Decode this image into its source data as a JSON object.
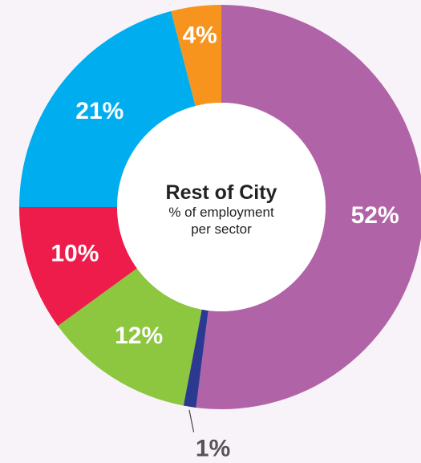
{
  "chart_data": {
    "type": "donut",
    "title": "Rest of City",
    "subtitle": "% of employment per sector",
    "values": [
      52,
      1,
      12,
      10,
      21,
      4
    ],
    "value_labels": [
      "52%",
      "1%",
      "12%",
      "10%",
      "21%",
      "4%"
    ],
    "colors": [
      "#b163a8",
      "#2b3990",
      "#8dc63f",
      "#ee1c4b",
      "#00aeef",
      "#f7941d"
    ]
  }
}
